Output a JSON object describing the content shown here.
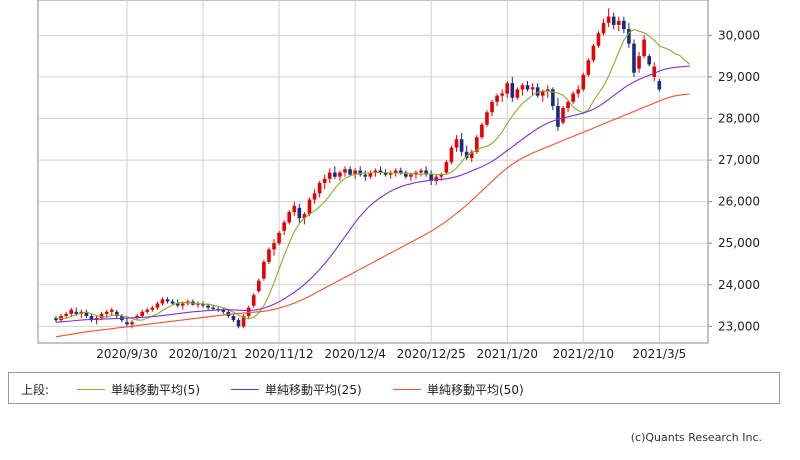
{
  "chart_data": {
    "type": "candlestick",
    "title": "",
    "xlabel": "",
    "ylabel": "",
    "ylim": [
      22600,
      30850
    ],
    "y_ticks": [
      "23,000",
      "24,000",
      "25,000",
      "26,000",
      "27,000",
      "28,000",
      "29,000",
      "30,000"
    ],
    "y_tick_values": [
      23000,
      24000,
      25000,
      26000,
      27000,
      28000,
      29000,
      30000
    ],
    "x_labels": [
      "2020/9/30",
      "2020/10/21",
      "2020/11/12",
      "2020/12/4",
      "2020/12/25",
      "2021/1/20",
      "2021/2/10",
      "2021/3/5"
    ],
    "x_label_indices": [
      14,
      29,
      44,
      59,
      74,
      89,
      104,
      119
    ],
    "grid": true,
    "up_color": "#e60000",
    "down_color": "#1a2a80",
    "candles": [
      [
        23200,
        23250,
        23100,
        23150
      ],
      [
        23150,
        23300,
        23100,
        23250
      ],
      [
        23250,
        23350,
        23200,
        23300
      ],
      [
        23300,
        23450,
        23250,
        23400
      ],
      [
        23350,
        23450,
        23250,
        23300
      ],
      [
        23300,
        23400,
        23200,
        23350
      ],
      [
        23350,
        23400,
        23200,
        23250
      ],
      [
        23250,
        23300,
        23100,
        23150
      ],
      [
        23150,
        23250,
        23050,
        23200
      ],
      [
        23200,
        23350,
        23150,
        23300
      ],
      [
        23300,
        23400,
        23200,
        23350
      ],
      [
        23350,
        23450,
        23250,
        23400
      ],
      [
        23350,
        23400,
        23200,
        23250
      ],
      [
        23250,
        23300,
        23100,
        23150
      ],
      [
        23100,
        23200,
        23000,
        23050
      ],
      [
        23050,
        23150,
        22950,
        23100
      ],
      [
        23200,
        23300,
        23150,
        23250
      ],
      [
        23250,
        23400,
        23200,
        23350
      ],
      [
        23350,
        23450,
        23300,
        23400
      ],
      [
        23400,
        23500,
        23350,
        23450
      ],
      [
        23450,
        23600,
        23400,
        23550
      ],
      [
        23550,
        23700,
        23500,
        23650
      ],
      [
        23650,
        23700,
        23550,
        23600
      ],
      [
        23600,
        23650,
        23500,
        23550
      ],
      [
        23550,
        23650,
        23450,
        23500
      ],
      [
        23500,
        23600,
        23400,
        23550
      ],
      [
        23550,
        23650,
        23500,
        23600
      ],
      [
        23600,
        23650,
        23500,
        23520
      ],
      [
        23520,
        23600,
        23450,
        23550
      ],
      [
        23550,
        23600,
        23450,
        23500
      ],
      [
        23500,
        23550,
        23400,
        23450
      ],
      [
        23450,
        23500,
        23380,
        23420
      ],
      [
        23420,
        23480,
        23350,
        23400
      ],
      [
        23400,
        23450,
        23300,
        23350
      ],
      [
        23350,
        23400,
        23200,
        23250
      ],
      [
        23250,
        23300,
        23100,
        23150
      ],
      [
        23150,
        23200,
        22950,
        23000
      ],
      [
        23000,
        23300,
        22950,
        23250
      ],
      [
        23250,
        23500,
        23200,
        23450
      ],
      [
        23500,
        23800,
        23450,
        23750
      ],
      [
        23850,
        24150,
        23800,
        24100
      ],
      [
        24150,
        24600,
        24100,
        24550
      ],
      [
        24550,
        24900,
        24500,
        24850
      ],
      [
        24850,
        25100,
        24700,
        25000
      ],
      [
        25000,
        25300,
        24950,
        25250
      ],
      [
        25300,
        25550,
        25200,
        25500
      ],
      [
        25500,
        25800,
        25450,
        25750
      ],
      [
        25750,
        26000,
        25650,
        25900
      ],
      [
        25850,
        25950,
        25500,
        25600
      ],
      [
        25600,
        25750,
        25450,
        25700
      ],
      [
        25700,
        26100,
        25650,
        26050
      ],
      [
        26050,
        26300,
        25950,
        26200
      ],
      [
        26200,
        26500,
        26100,
        26450
      ],
      [
        26450,
        26650,
        26300,
        26550
      ],
      [
        26550,
        26800,
        26450,
        26700
      ],
      [
        26700,
        26850,
        26550,
        26600
      ],
      [
        26600,
        26750,
        26500,
        26700
      ],
      [
        26700,
        26850,
        26600,
        26780
      ],
      [
        26780,
        26850,
        26600,
        26650
      ],
      [
        26650,
        26800,
        26550,
        26750
      ],
      [
        26750,
        26850,
        26600,
        26650
      ],
      [
        26650,
        26750,
        26500,
        26600
      ],
      [
        26600,
        26750,
        26550,
        26700
      ],
      [
        26700,
        26800,
        26600,
        26750
      ],
      [
        26750,
        26850,
        26650,
        26700
      ],
      [
        26700,
        26780,
        26600,
        26650
      ],
      [
        26650,
        26750,
        26550,
        26700
      ],
      [
        26700,
        26800,
        26600,
        26750
      ],
      [
        26750,
        26820,
        26650,
        26700
      ],
      [
        26700,
        26750,
        26550,
        26600
      ],
      [
        26600,
        26700,
        26500,
        26650
      ],
      [
        26650,
        26750,
        26550,
        26700
      ],
      [
        26700,
        26800,
        26600,
        26750
      ],
      [
        26750,
        26850,
        26600,
        26650
      ],
      [
        26650,
        26750,
        26400,
        26500
      ],
      [
        26500,
        26650,
        26400,
        26600
      ],
      [
        26600,
        26700,
        26500,
        26650
      ],
      [
        26700,
        27000,
        26650,
        26950
      ],
      [
        26950,
        27350,
        26900,
        27300
      ],
      [
        27300,
        27600,
        27200,
        27500
      ],
      [
        27500,
        27650,
        27100,
        27200
      ],
      [
        27200,
        27350,
        27000,
        27050
      ],
      [
        27050,
        27250,
        26950,
        27200
      ],
      [
        27200,
        27600,
        27150,
        27550
      ],
      [
        27550,
        27900,
        27500,
        27850
      ],
      [
        27850,
        28200,
        27800,
        28150
      ],
      [
        28150,
        28450,
        28050,
        28400
      ],
      [
        28400,
        28600,
        28300,
        28550
      ],
      [
        28550,
        28700,
        28400,
        28600
      ],
      [
        28600,
        28900,
        28500,
        28850
      ],
      [
        28850,
        29000,
        28400,
        28500
      ],
      [
        28500,
        28750,
        28450,
        28700
      ],
      [
        28700,
        28850,
        28550,
        28800
      ],
      [
        28800,
        28900,
        28650,
        28700
      ],
      [
        28700,
        28850,
        28550,
        28750
      ],
      [
        28750,
        28850,
        28500,
        28550
      ],
      [
        28550,
        28700,
        28400,
        28650
      ],
      [
        28650,
        28800,
        28500,
        28700
      ],
      [
        28700,
        28750,
        28200,
        28300
      ],
      [
        28300,
        28500,
        27700,
        27800
      ],
      [
        27900,
        28300,
        27850,
        28250
      ],
      [
        28250,
        28450,
        28150,
        28400
      ],
      [
        28400,
        28650,
        28350,
        28600
      ],
      [
        28600,
        28800,
        28500,
        28700
      ],
      [
        28700,
        29100,
        28650,
        29050
      ],
      [
        29050,
        29450,
        29000,
        29400
      ],
      [
        29400,
        29800,
        29350,
        29750
      ],
      [
        29750,
        30100,
        29700,
        30050
      ],
      [
        30050,
        30400,
        30000,
        30300
      ],
      [
        30300,
        30650,
        30200,
        30450
      ],
      [
        30450,
        30550,
        30150,
        30250
      ],
      [
        30250,
        30450,
        30100,
        30350
      ],
      [
        30350,
        30450,
        30050,
        30150
      ],
      [
        30150,
        30300,
        29700,
        29800
      ],
      [
        29800,
        29900,
        29000,
        29100
      ],
      [
        29200,
        29600,
        29100,
        29500
      ],
      [
        29500,
        30000,
        29450,
        29900
      ],
      [
        29500,
        29550,
        29250,
        29300
      ],
      [
        29000,
        29350,
        28900,
        29250
      ],
      [
        28900,
        28950,
        28650,
        28700
      ]
    ],
    "series": [
      {
        "name": "単純移動平均(5)",
        "color": "#8aae2a",
        "values": [
          23200,
          23190,
          23195,
          23240,
          23280,
          23320,
          23340,
          23300,
          23260,
          23230,
          23230,
          23260,
          23280,
          23250,
          23230,
          23190,
          23150,
          23150,
          23200,
          23250,
          23300,
          23380,
          23450,
          23520,
          23560,
          23580,
          23570,
          23560,
          23550,
          23540,
          23530,
          23510,
          23480,
          23450,
          23400,
          23340,
          23270,
          23220,
          23180,
          23220,
          23320,
          23500,
          23750,
          24050,
          24380,
          24700,
          25000,
          25280,
          25480,
          25600,
          25700,
          25780,
          25880,
          26000,
          26150,
          26320,
          26450,
          26560,
          26620,
          26660,
          26680,
          26690,
          26690,
          26700,
          26700,
          26700,
          26690,
          26690,
          26690,
          26680,
          26670,
          26660,
          26660,
          26670,
          26670,
          26650,
          26650,
          26660,
          26710,
          26810,
          26960,
          27100,
          27180,
          27250,
          27300,
          27330,
          27400,
          27520,
          27680,
          27880,
          28060,
          28220,
          28360,
          28460,
          28560,
          28630,
          28660,
          28660,
          28640,
          28610,
          28560,
          28440,
          28280,
          28190,
          28140,
          28210,
          28420,
          28600,
          28780,
          29020,
          29300,
          29600,
          29880,
          30060,
          30140,
          30100,
          30060,
          29980,
          29880,
          29740,
          29700,
          29650,
          29560,
          29520,
          29400,
          29300
        ]
      },
      {
        "name": "単純移動平均(25)",
        "color": "#8030d0",
        "values": [
          23100,
          23110,
          23120,
          23130,
          23140,
          23150,
          23160,
          23165,
          23170,
          23175,
          23180,
          23185,
          23190,
          23195,
          23200,
          23205,
          23210,
          23215,
          23225,
          23235,
          23245,
          23260,
          23275,
          23290,
          23305,
          23320,
          23335,
          23350,
          23360,
          23370,
          23380,
          23390,
          23395,
          23400,
          23400,
          23395,
          23390,
          23385,
          23380,
          23390,
          23410,
          23440,
          23480,
          23530,
          23590,
          23660,
          23740,
          23820,
          23910,
          24010,
          24120,
          24240,
          24370,
          24510,
          24660,
          24820,
          24990,
          25160,
          25330,
          25500,
          25650,
          25790,
          25910,
          26010,
          26100,
          26180,
          26250,
          26310,
          26360,
          26400,
          26430,
          26460,
          26480,
          26500,
          26520,
          26530,
          26540,
          26550,
          26570,
          26600,
          26640,
          26690,
          26740,
          26790,
          26840,
          26900,
          26970,
          27050,
          27140,
          27230,
          27320,
          27410,
          27500,
          27590,
          27680,
          27760,
          27830,
          27890,
          27940,
          27980,
          28010,
          28040,
          28070,
          28100,
          28130,
          28170,
          28220,
          28290,
          28370,
          28460,
          28550,
          28640,
          28730,
          28810,
          28880,
          28940,
          28990,
          29040,
          29090,
          29140,
          29180,
          29210,
          29230,
          29240,
          29250,
          29260
        ]
      },
      {
        "name": "単純移動平均(50)",
        "color": "#f05030",
        "values": [
          22750,
          22770,
          22790,
          22810,
          22830,
          22850,
          22870,
          22885,
          22900,
          22915,
          22930,
          22945,
          22960,
          22975,
          22990,
          23005,
          23020,
          23035,
          23050,
          23065,
          23080,
          23095,
          23110,
          23125,
          23140,
          23155,
          23170,
          23185,
          23200,
          23215,
          23230,
          23245,
          23260,
          23275,
          23290,
          23300,
          23310,
          23320,
          23330,
          23340,
          23350,
          23365,
          23385,
          23410,
          23440,
          23475,
          23515,
          23560,
          23610,
          23665,
          23725,
          23790,
          23855,
          23920,
          23985,
          24050,
          24115,
          24180,
          24245,
          24310,
          24375,
          24440,
          24505,
          24570,
          24635,
          24700,
          24765,
          24830,
          24895,
          24960,
          25025,
          25090,
          25155,
          25220,
          25290,
          25365,
          25445,
          25530,
          25620,
          25715,
          25815,
          25920,
          26030,
          26145,
          26260,
          26375,
          26490,
          26600,
          26710,
          26810,
          26900,
          26980,
          27050,
          27110,
          27170,
          27220,
          27270,
          27320,
          27370,
          27420,
          27470,
          27520,
          27570,
          27620,
          27670,
          27720,
          27770,
          27820,
          27870,
          27920,
          27970,
          28020,
          28070,
          28120,
          28170,
          28220,
          28270,
          28320,
          28370,
          28420,
          28470,
          28510,
          28540,
          28560,
          28580,
          28590
        ]
      }
    ]
  },
  "legend": {
    "title": "上段:",
    "items": [
      {
        "label": "単純移動平均(5)",
        "color": "#8aae2a"
      },
      {
        "label": "単純移動平均(25)",
        "color": "#8030d0"
      },
      {
        "label": "単純移動平均(50)",
        "color": "#f05030"
      }
    ]
  },
  "footer": {
    "copyright": "(c)Quants Research Inc."
  }
}
